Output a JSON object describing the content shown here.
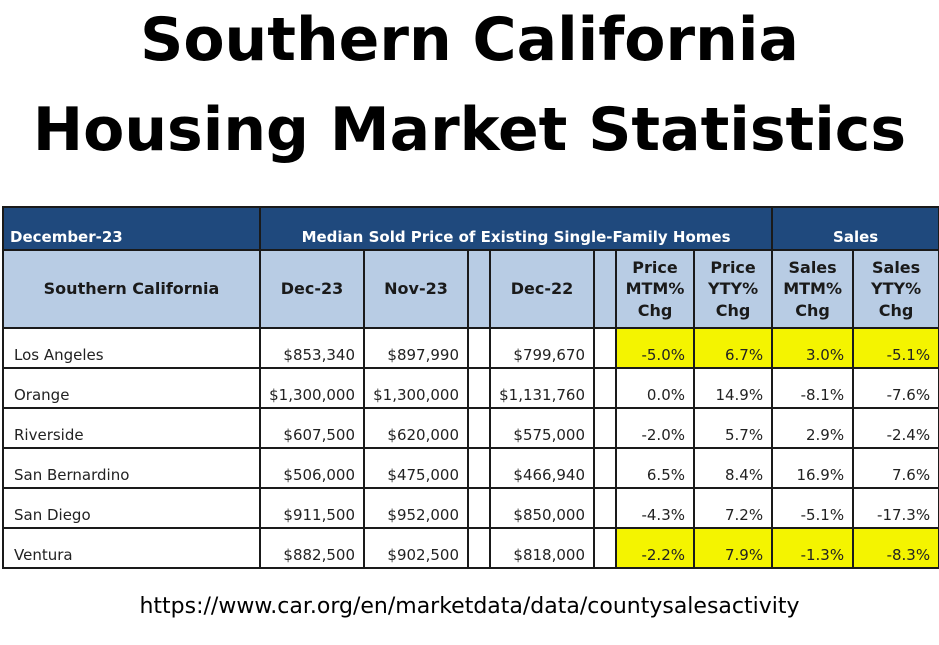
{
  "title_line1": "Southern California",
  "title_line2": "Housing Market Statistics",
  "table": {
    "period_label": "December-23",
    "group_price": "Median Sold Price of Existing Single-Family Homes",
    "group_sales": "Sales",
    "headers": {
      "region": "Southern California",
      "dec23": "Dec-23",
      "nov23": "Nov-23",
      "dec22": "Dec-22",
      "price_mtm": [
        "Price",
        "MTM%",
        "Chg"
      ],
      "price_yty": [
        "Price",
        "YTY%",
        "Chg"
      ],
      "sales_mtm": [
        "Sales",
        "MTM%",
        "Chg"
      ],
      "sales_yty": [
        "Sales",
        "YTY%",
        "Chg"
      ]
    },
    "rows": [
      {
        "county": "Los Angeles",
        "dec23": "$853,340",
        "nov23": "$897,990",
        "dec22": "$799,670",
        "price_mtm": "-5.0%",
        "price_yty": "6.7%",
        "sales_mtm": "3.0%",
        "sales_yty": "-5.1%",
        "highlighted": true
      },
      {
        "county": "Orange",
        "dec23": "$1,300,000",
        "nov23": "$1,300,000",
        "dec22": "$1,131,760",
        "price_mtm": "0.0%",
        "price_yty": "14.9%",
        "sales_mtm": "-8.1%",
        "sales_yty": "-7.6%",
        "highlighted": false
      },
      {
        "county": "Riverside",
        "dec23": "$607,500",
        "nov23": "$620,000",
        "dec22": "$575,000",
        "price_mtm": "-2.0%",
        "price_yty": "5.7%",
        "sales_mtm": "2.9%",
        "sales_yty": "-2.4%",
        "highlighted": false
      },
      {
        "county": "San Bernardino",
        "dec23": "$506,000",
        "nov23": "$475,000",
        "dec22": "$466,940",
        "price_mtm": "6.5%",
        "price_yty": "8.4%",
        "sales_mtm": "16.9%",
        "sales_yty": "7.6%",
        "highlighted": false
      },
      {
        "county": "San Diego",
        "dec23": "$911,500",
        "nov23": "$952,000",
        "dec22": "$850,000",
        "price_mtm": "-4.3%",
        "price_yty": "7.2%",
        "sales_mtm": "-5.1%",
        "sales_yty": "-17.3%",
        "highlighted": false
      },
      {
        "county": "Ventura",
        "dec23": "$882,500",
        "nov23": "$902,500",
        "dec22": "$818,000",
        "price_mtm": "-2.2%",
        "price_yty": "7.9%",
        "sales_mtm": "-1.3%",
        "sales_yty": "-8.3%",
        "highlighted": true
      }
    ]
  },
  "source_url": "https://www.car.org/en/marketdata/data/countysalesactivity",
  "colors": {
    "header_band": "#1f497d",
    "header_cells": "#b8cce4",
    "highlight": "#f4f400"
  }
}
